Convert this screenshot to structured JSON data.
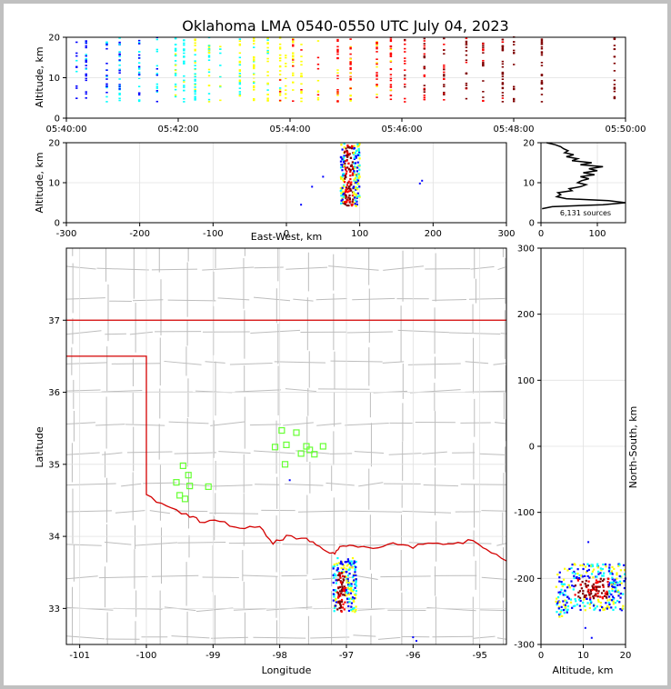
{
  "title": "Oklahoma LMA 0540-0550 UTC July 04, 2023",
  "colors": {
    "axis": "#000000",
    "grid": "#e0e0e0",
    "counties": "#bdbdbd",
    "state_border": "#d40000",
    "station": "#66ff33",
    "sources_cold": "#0000ff",
    "sources_mid": "#00ffff",
    "sources_warm": "#ffff00",
    "sources_hot": "#ff0000",
    "sources_late": "#7f0000"
  },
  "chart_data": [
    {
      "id": "time-height",
      "type": "scatter",
      "xlabel": "",
      "ylabel": "Altitude, km",
      "xlim": [
        "05:40:00",
        "05:50:00"
      ],
      "ylim": [
        0,
        20
      ],
      "xticks": [
        "05:40:00",
        "05:42:00",
        "05:44:00",
        "05:46:00",
        "05:48:00",
        "05:50:00"
      ],
      "yticks": [
        0,
        10,
        20
      ],
      "flash_times_min": [
        0.18,
        0.35,
        0.72,
        0.95,
        1.3,
        1.62,
        1.95,
        2.1,
        2.3,
        2.55,
        2.75,
        3.1,
        3.35,
        3.6,
        3.82,
        3.92,
        4.05,
        4.2,
        4.5,
        4.85,
        5.08,
        5.55,
        5.8,
        6.05,
        6.4,
        6.75,
        7.15,
        7.45,
        7.8,
        8.0,
        8.5,
        9.8
      ]
    },
    {
      "id": "ew-altitude",
      "type": "scatter",
      "xlabel": "East-West, km",
      "ylabel": "Altitude, km",
      "xlim": [
        -300,
        300
      ],
      "ylim": [
        0,
        20
      ],
      "xticks": [
        -300,
        -200,
        -100,
        0,
        100,
        200,
        300
      ],
      "yticks": [
        0,
        10,
        20
      ],
      "core_x_km": [
        74,
        100
      ],
      "core_alt_km": [
        4,
        20
      ]
    },
    {
      "id": "altitude-histogram",
      "type": "line",
      "xlim": [
        0,
        150
      ],
      "ylim": [
        0,
        20
      ],
      "xticks": [
        0,
        100
      ],
      "yticks": [
        0,
        10,
        20
      ],
      "annotation": "6,131 sources",
      "altitude_km": [
        3.5,
        4,
        4.5,
        5,
        5.5,
        6,
        6.5,
        7,
        7.5,
        8,
        8.5,
        9,
        9.5,
        10,
        10.5,
        11,
        11.5,
        12,
        12.5,
        13,
        13.5,
        14,
        14.5,
        15,
        15.5,
        16,
        16.5,
        17,
        17.5,
        18,
        18.5,
        19,
        19.5,
        20
      ],
      "count": [
        2,
        20,
        110,
        150,
        120,
        45,
        28,
        35,
        30,
        55,
        50,
        70,
        80,
        65,
        72,
        85,
        70,
        95,
        75,
        100,
        85,
        110,
        70,
        90,
        55,
        65,
        45,
        58,
        42,
        48,
        40,
        35,
        25,
        10
      ]
    },
    {
      "id": "plan-view",
      "type": "scatter",
      "xlabel": "Longitude",
      "ylabel": "Latitude",
      "xlim": [
        -101.2,
        -94.6
      ],
      "ylim": [
        32.5,
        38
      ],
      "xticks": [
        -101,
        -100,
        -99,
        -98,
        -97,
        -96,
        -95
      ],
      "yticks": [
        33,
        34,
        35,
        36,
        37
      ],
      "stations": [
        [
          -99.55,
          34.75
        ],
        [
          -99.45,
          34.98
        ],
        [
          -99.37,
          34.85
        ],
        [
          -99.35,
          34.7
        ],
        [
          -99.5,
          34.57
        ],
        [
          -99.42,
          34.52
        ],
        [
          -99.07,
          34.69
        ],
        [
          -97.97,
          35.47
        ],
        [
          -98.07,
          35.24
        ],
        [
          -97.9,
          35.27
        ],
        [
          -97.75,
          35.44
        ],
        [
          -97.68,
          35.15
        ],
        [
          -97.6,
          35.25
        ],
        [
          -97.48,
          35.14
        ],
        [
          -97.35,
          35.25
        ],
        [
          -97.92,
          35.0
        ],
        [
          -97.55,
          35.2
        ]
      ],
      "core_lon": [
        -97.2,
        -96.85
      ],
      "core_lat": [
        32.95,
        33.7
      ]
    },
    {
      "id": "altitude-ns",
      "type": "scatter",
      "xlabel": "Altitude, km",
      "ylabel": "North-South, km",
      "xlim": [
        0,
        20
      ],
      "ylim": [
        -300,
        300
      ],
      "xticks": [
        0,
        10,
        20
      ],
      "yticks": [
        -300,
        -200,
        -100,
        0,
        100,
        200,
        300
      ],
      "core_alt_km": [
        3.5,
        20
      ],
      "core_ns_km": [
        -258,
        -178
      ]
    }
  ]
}
